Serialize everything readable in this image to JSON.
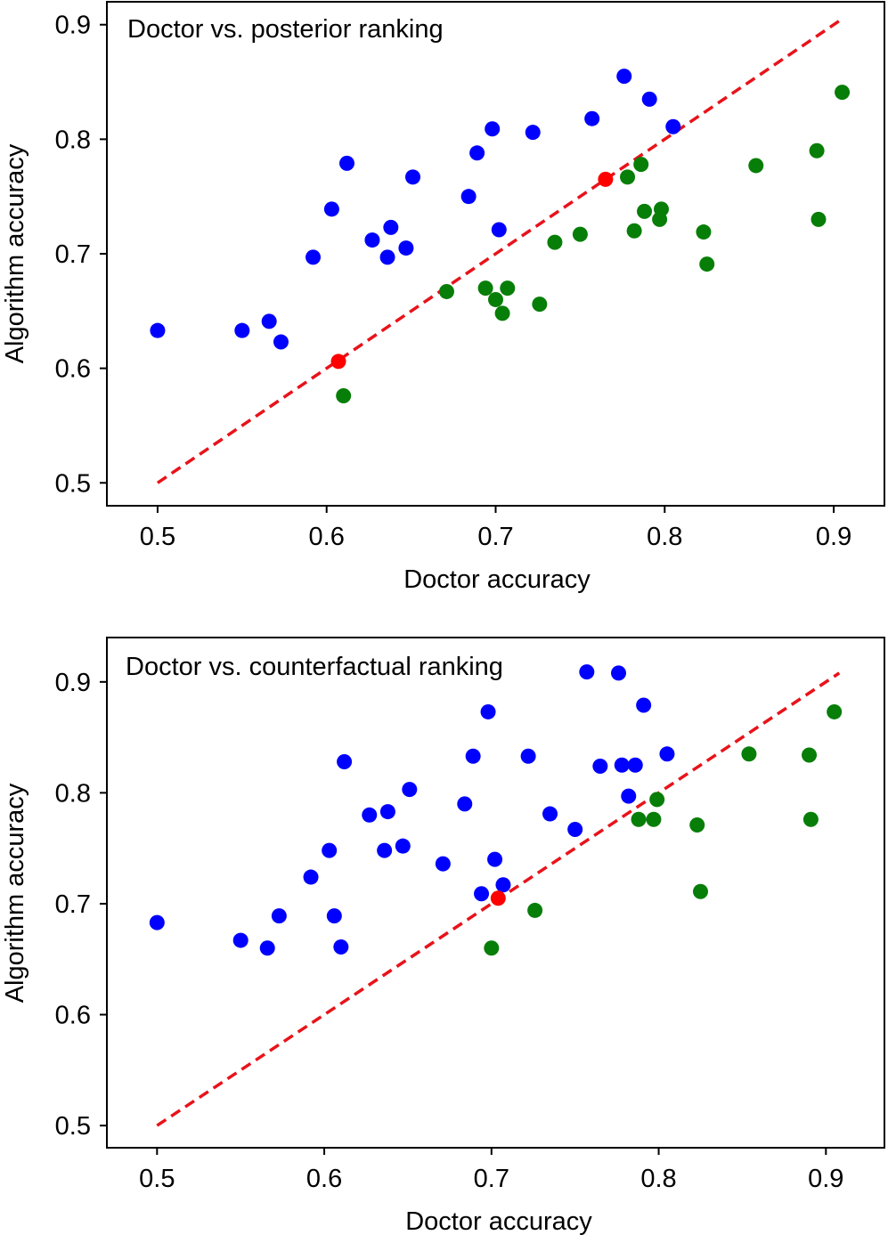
{
  "chart_data": [
    {
      "type": "scatter",
      "title": "Doctor vs. posterior ranking",
      "xlabel": "Doctor accuracy",
      "ylabel": "Algorithm accuracy",
      "xlim": [
        0.47,
        0.93
      ],
      "ylim": [
        0.48,
        0.92
      ],
      "xticks": [
        "0.5",
        "0.6",
        "0.7",
        "0.8",
        "0.9"
      ],
      "yticks": [
        "0.5",
        "0.6",
        "0.7",
        "0.8",
        "0.9"
      ],
      "grid": false,
      "reference_line": {
        "x": [
          0.5,
          0.905
        ],
        "y": [
          0.5,
          0.905
        ],
        "color": "#e8131a",
        "style": "dashed"
      },
      "series": [
        {
          "color": "#0000ff",
          "points": [
            [
              0.5,
              0.633
            ],
            [
              0.55,
              0.633
            ],
            [
              0.566,
              0.641
            ],
            [
              0.573,
              0.623
            ],
            [
              0.592,
              0.697
            ],
            [
              0.603,
              0.739
            ],
            [
              0.612,
              0.779
            ],
            [
              0.627,
              0.712
            ],
            [
              0.636,
              0.697
            ],
            [
              0.638,
              0.723
            ],
            [
              0.647,
              0.705
            ],
            [
              0.651,
              0.767
            ],
            [
              0.684,
              0.75
            ],
            [
              0.689,
              0.788
            ],
            [
              0.698,
              0.809
            ],
            [
              0.702,
              0.721
            ],
            [
              0.722,
              0.806
            ],
            [
              0.757,
              0.818
            ],
            [
              0.776,
              0.855
            ],
            [
              0.791,
              0.835
            ],
            [
              0.805,
              0.811
            ]
          ]
        },
        {
          "color": "#077e07",
          "points": [
            [
              0.61,
              0.576
            ],
            [
              0.671,
              0.667
            ],
            [
              0.694,
              0.67
            ],
            [
              0.7,
              0.66
            ],
            [
              0.704,
              0.648
            ],
            [
              0.707,
              0.67
            ],
            [
              0.726,
              0.656
            ],
            [
              0.735,
              0.71
            ],
            [
              0.75,
              0.717
            ],
            [
              0.778,
              0.767
            ],
            [
              0.782,
              0.72
            ],
            [
              0.786,
              0.778
            ],
            [
              0.788,
              0.737
            ],
            [
              0.797,
              0.73
            ],
            [
              0.798,
              0.739
            ],
            [
              0.823,
              0.719
            ],
            [
              0.825,
              0.691
            ],
            [
              0.854,
              0.777
            ],
            [
              0.89,
              0.79
            ],
            [
              0.891,
              0.73
            ],
            [
              0.905,
              0.841
            ]
          ]
        },
        {
          "color": "#ff0000",
          "points": [
            [
              0.607,
              0.606
            ],
            [
              0.765,
              0.765
            ]
          ]
        }
      ]
    },
    {
      "type": "scatter",
      "title": "Doctor vs. counterfactual ranking",
      "xlabel": "Doctor accuracy",
      "ylabel": "Algorithm accuracy",
      "xlim": [
        0.47,
        0.935
      ],
      "ylim": [
        0.48,
        0.94
      ],
      "xticks": [
        "0.5",
        "0.6",
        "0.7",
        "0.8",
        "0.9"
      ],
      "yticks": [
        "0.5",
        "0.6",
        "0.7",
        "0.8",
        "0.9"
      ],
      "grid": false,
      "reference_line": {
        "x": [
          0.5,
          0.908
        ],
        "y": [
          0.5,
          0.908
        ],
        "color": "#e8131a",
        "style": "dashed"
      },
      "series": [
        {
          "color": "#0000ff",
          "points": [
            [
              0.5,
              0.683
            ],
            [
              0.55,
              0.667
            ],
            [
              0.566,
              0.66
            ],
            [
              0.573,
              0.689
            ],
            [
              0.592,
              0.724
            ],
            [
              0.603,
              0.748
            ],
            [
              0.606,
              0.689
            ],
            [
              0.61,
              0.661
            ],
            [
              0.612,
              0.828
            ],
            [
              0.627,
              0.78
            ],
            [
              0.636,
              0.748
            ],
            [
              0.638,
              0.783
            ],
            [
              0.647,
              0.752
            ],
            [
              0.651,
              0.803
            ],
            [
              0.671,
              0.736
            ],
            [
              0.684,
              0.79
            ],
            [
              0.689,
              0.833
            ],
            [
              0.694,
              0.709
            ],
            [
              0.698,
              0.873
            ],
            [
              0.702,
              0.74
            ],
            [
              0.707,
              0.717
            ],
            [
              0.722,
              0.833
            ],
            [
              0.735,
              0.781
            ],
            [
              0.75,
              0.767
            ],
            [
              0.757,
              0.909
            ],
            [
              0.765,
              0.824
            ],
            [
              0.776,
              0.908
            ],
            [
              0.778,
              0.825
            ],
            [
              0.782,
              0.797
            ],
            [
              0.786,
              0.825
            ],
            [
              0.791,
              0.879
            ],
            [
              0.805,
              0.835
            ]
          ]
        },
        {
          "color": "#077e07",
          "points": [
            [
              0.7,
              0.66
            ],
            [
              0.726,
              0.694
            ],
            [
              0.788,
              0.776
            ],
            [
              0.797,
              0.776
            ],
            [
              0.799,
              0.794
            ],
            [
              0.823,
              0.771
            ],
            [
              0.825,
              0.711
            ],
            [
              0.854,
              0.835
            ],
            [
              0.89,
              0.834
            ],
            [
              0.891,
              0.776
            ],
            [
              0.905,
              0.873
            ]
          ]
        },
        {
          "color": "#ff0000",
          "points": [
            [
              0.704,
              0.705
            ]
          ]
        }
      ]
    }
  ]
}
